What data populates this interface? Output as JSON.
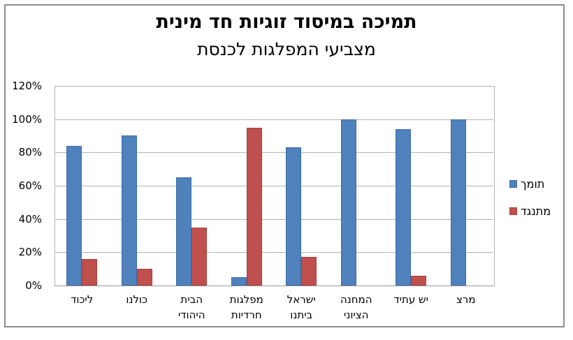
{
  "title": {
    "line1": "תמיכה במיסוד זוגיות חד מינית",
    "line2": "מצביעי המפלגות לכנסת"
  },
  "legend": {
    "position": "right",
    "items": [
      {
        "label": "תומך",
        "color": "#4F81BD",
        "border": "#3d6da6"
      },
      {
        "label": "מתנגד",
        "color": "#C0504D",
        "border": "#a6403d"
      }
    ]
  },
  "y_axis": {
    "tick_labels": [
      "120%",
      "100%",
      "80%",
      "60%",
      "40%",
      "20%",
      "0%"
    ],
    "min": 0,
    "max": 120,
    "step": 20,
    "unit": "%"
  },
  "chart_data": {
    "type": "bar",
    "title": "תמיכה במיסוד זוגיות חד מינית",
    "subtitle": "מצביעי המפלגות לכנסת",
    "categories": [
      "ליכוד",
      "כולנו",
      "הבית היהודי",
      "מפלגות חרדיות",
      "ישראל ביתנו",
      "המחנה הציוני",
      "יש עתיד",
      "מרצ"
    ],
    "category_label_lines": [
      [
        "ליכוד"
      ],
      [
        "כולנו"
      ],
      [
        "הבית",
        "היהודי"
      ],
      [
        "מפלגות",
        "חרדיות"
      ],
      [
        "ישראל",
        "ביתנו"
      ],
      [
        "המחנה",
        "הציוני"
      ],
      [
        "יש עתיד"
      ],
      [
        "מרצ"
      ]
    ],
    "series": [
      {
        "name": "תומך",
        "color": "#4F81BD",
        "values": [
          84,
          90,
          65,
          5,
          83,
          100,
          94,
          100
        ]
      },
      {
        "name": "מתנגד",
        "color": "#C0504D",
        "values": [
          16,
          10,
          35,
          95,
          17,
          0,
          6,
          0
        ]
      }
    ],
    "ylim": [
      0,
      120
    ],
    "grid": true,
    "legend_position": "right"
  },
  "colors": {
    "support_bar": "#4F81BD",
    "oppose_bar": "#C0504D",
    "gridline": "#b4b4b4",
    "axis_line": "#9a9a9a",
    "frame_border": "#8c8c8c",
    "background": "#ffffff",
    "text": "#000000"
  }
}
